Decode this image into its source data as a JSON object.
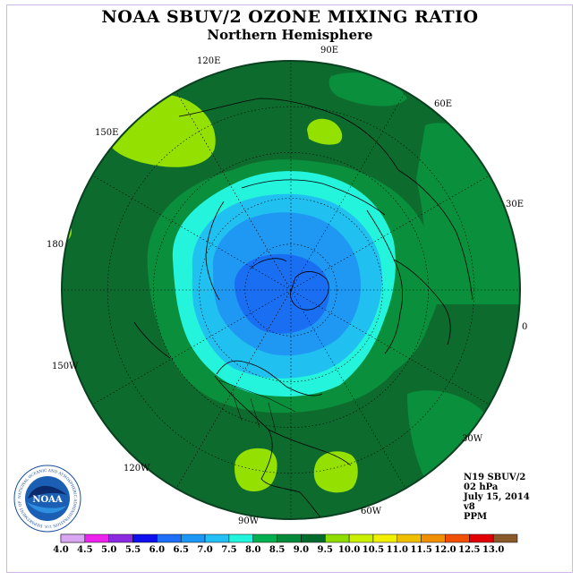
{
  "header": {
    "title": "NOAA SBUV/2 OZONE MIXING RATIO",
    "subtitle": "Northern Hemisphere"
  },
  "longitude_labels": [
    "90E",
    "60E",
    "30E",
    "0",
    "30W",
    "60W",
    "90W",
    "120W",
    "150W",
    "180",
    "150E",
    "120E"
  ],
  "info": {
    "instrument": "N19 SBUV/2",
    "level": "02 hPa",
    "date": "July 15, 2014",
    "version": "v8",
    "units": "PPM"
  },
  "logo": {
    "text": "NOAA",
    "ring_text": "NATIONAL OCEANIC AND ATMOSPHERIC ADMINISTRATION U.S. DEPARTMENT OF COMMERCE"
  },
  "colorbar": {
    "ticks": [
      "4.0",
      "4.5",
      "5.0",
      "5.5",
      "6.0",
      "6.5",
      "7.0",
      "7.5",
      "8.0",
      "8.5",
      "9.0",
      "9.5",
      "10.0",
      "10.5",
      "11.0",
      "11.5",
      "12.0",
      "12.5",
      "13.0"
    ],
    "colors": [
      "#b57be8",
      "#d9a6f2",
      "#ee22ee",
      "#8a2be2",
      "#1010ee",
      "#1e6ff5",
      "#1c97f5",
      "#22c0f5",
      "#22f5dc",
      "#00b050",
      "#008a3a",
      "#006b2c",
      "#8fdc00",
      "#c8f000",
      "#f0f000",
      "#f0c000",
      "#f09000",
      "#f05000",
      "#e00000",
      "#8b5a2b"
    ]
  },
  "map": {
    "field_colors": {
      "ppm_8_5_to_9_0": "#0e6b2e",
      "ppm_8_0_to_8_5": "#0a8f3c",
      "ppm_7_5_to_8_0": "#24f4dc",
      "ppm_7_0_to_7_5": "#20c0f0",
      "ppm_6_5_to_7_0": "#1e98f2",
      "ppm_6_0_to_6_5": "#1a6ef2",
      "ppm_9_0_to_9_5": "#94e000"
    }
  }
}
